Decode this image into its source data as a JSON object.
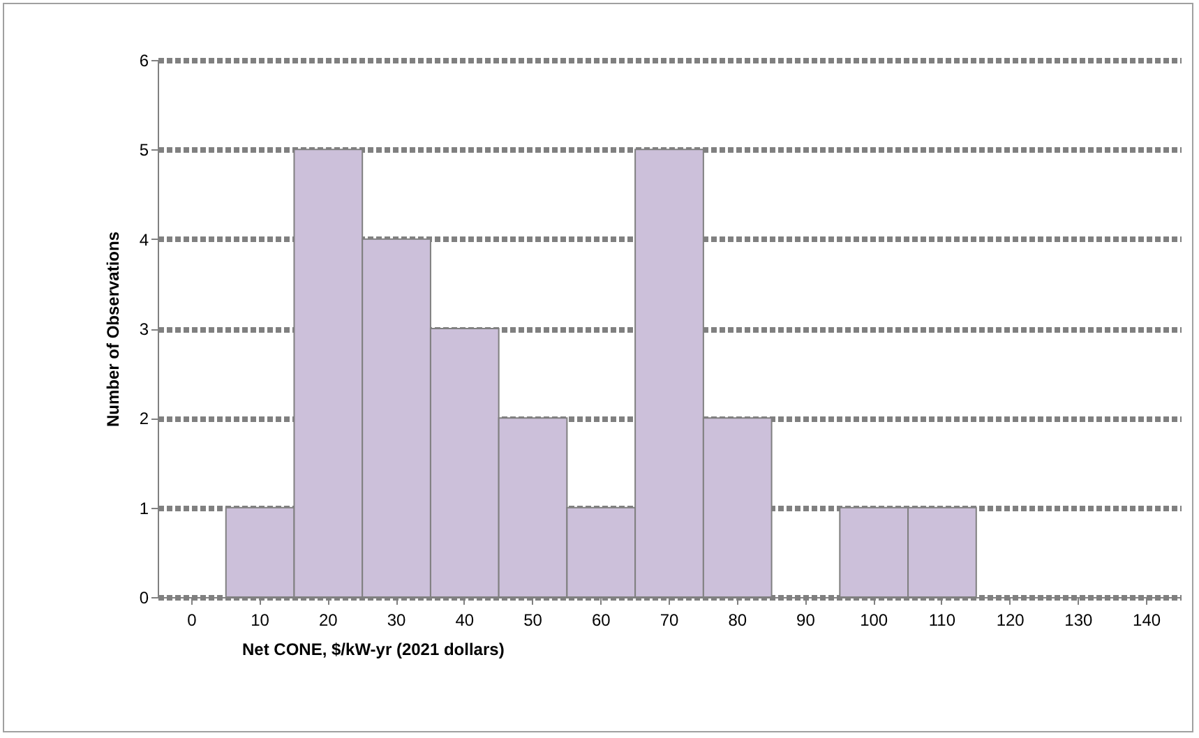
{
  "chart_data": {
    "type": "bar",
    "xlabel": "Net CONE, $/kW-yr (2021 dollars)",
    "ylabel": "Number of Observations",
    "categories": [
      "0",
      "10",
      "20",
      "30",
      "40",
      "50",
      "60",
      "70",
      "80",
      "90",
      "100",
      "110",
      "120",
      "130",
      "140"
    ],
    "values": [
      0,
      1,
      5,
      4,
      3,
      2,
      1,
      5,
      2,
      0,
      1,
      1,
      0,
      0,
      0
    ],
    "color": "#ccc0da",
    "ylim": [
      0,
      6
    ],
    "yticks": [
      0,
      1,
      2,
      3,
      4,
      5,
      6
    ],
    "grid": "y"
  }
}
